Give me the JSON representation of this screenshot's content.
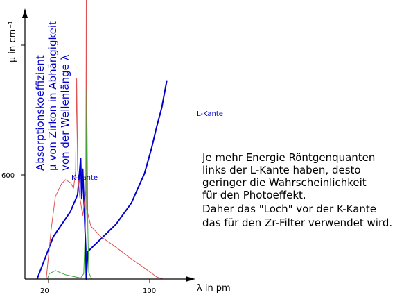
{
  "chart_data": {
    "type": "line",
    "title": "",
    "ylabel_lines": [
      "Absorptionskoeffizient",
      "µ von Zirkon in Abhängigkeit",
      "von der Wellenlänge λ"
    ],
    "y_unit_label": "µ in cm⁻¹",
    "x_unit_label": "λ in pm",
    "x_ticks": [
      "20",
      "100"
    ],
    "y_ticks": [
      "600"
    ],
    "annotations": [
      "K-Kante",
      "L-Kante"
    ],
    "note_lines": [
      "Je mehr Energie Röntgenquanten",
      "links der L-Kante haben, desto",
      "geringer die Wahrscheinlichkeit",
      "für den Photoeffekt.",
      "Daher das \"Loch\" vor der K-Kante",
      "das für den Zr-Filter verwendet wird."
    ],
    "xlim": [
      0,
      160
    ],
    "ylim": [
      0,
      1320
    ],
    "grid": false,
    "series": [
      {
        "color": "#0000cc",
        "points": [
          [
            12,
            0
          ],
          [
            28,
            200
          ],
          [
            45,
            320
          ],
          [
            52,
            400
          ],
          [
            55,
            570
          ],
          [
            56,
            380
          ],
          [
            57,
            520
          ],
          [
            60,
            140
          ],
          [
            60.5,
            0
          ],
          [
            62,
            130
          ],
          [
            75,
            190
          ],
          [
            90,
            260
          ],
          [
            105,
            360
          ],
          [
            118,
            500
          ],
          [
            125,
            620
          ],
          [
            130,
            720
          ],
          [
            135,
            810
          ],
          [
            140,
            940
          ]
        ]
      },
      {
        "color": "#e05050",
        "points": [
          [
            21,
            0
          ],
          [
            26,
            240
          ],
          [
            30,
            390
          ],
          [
            36,
            450
          ],
          [
            40,
            470
          ],
          [
            45,
            455
          ],
          [
            48,
            430
          ],
          [
            50,
            510
          ],
          [
            51,
            950
          ],
          [
            52,
            520
          ],
          [
            54,
            390
          ],
          [
            57,
            300
          ],
          [
            60,
            420
          ],
          [
            60.5,
            1320
          ],
          [
            61,
            330
          ],
          [
            65,
            250
          ],
          [
            75,
            200
          ],
          [
            90,
            150
          ],
          [
            105,
            95
          ],
          [
            120,
            45
          ],
          [
            130,
            10
          ],
          [
            136,
            0
          ]
        ]
      },
      {
        "color": "#3aa63a",
        "points": [
          [
            22,
            0
          ],
          [
            24,
            25
          ],
          [
            30,
            40
          ],
          [
            40,
            20
          ],
          [
            50,
            10
          ],
          [
            55,
            5
          ],
          [
            58,
            25
          ],
          [
            60,
            300
          ],
          [
            61,
            900
          ],
          [
            62,
            250
          ],
          [
            63,
            30
          ],
          [
            66,
            0
          ],
          [
            70,
            0
          ]
        ]
      }
    ]
  }
}
